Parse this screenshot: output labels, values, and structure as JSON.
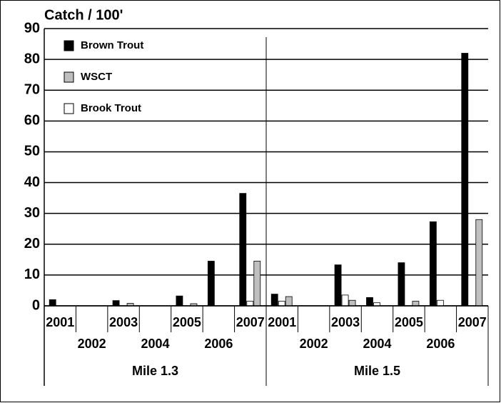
{
  "chart_data": {
    "type": "bar",
    "y_label": "Catch / 100'",
    "categories": [
      "2001",
      "2002",
      "2003",
      "2004",
      "2005",
      "2006",
      "2007",
      "2001",
      "2002",
      "2003",
      "2004",
      "2005",
      "2006",
      "2007"
    ],
    "groups": [
      "Mile 1.3",
      "Mile 1.5"
    ],
    "series": [
      {
        "name": "Brown Trout",
        "color": "#000000",
        "values": [
          2,
          0,
          1.7,
          0,
          3.2,
          14.5,
          36.5,
          3.8,
          0,
          13.3,
          2.7,
          14,
          27.3,
          82
        ]
      },
      {
        "name": "WSCT",
        "color": "#bfbfbf",
        "values": [
          0,
          0,
          0.8,
          0,
          0.7,
          0,
          14.5,
          3,
          0,
          1.8,
          0,
          1.5,
          0,
          28
        ]
      },
      {
        "name": "Brook Trout",
        "color": "#ffffff",
        "values": [
          0,
          0,
          0,
          0,
          0,
          0,
          1.5,
          1.5,
          0,
          3.5,
          1,
          0,
          1.8,
          0
        ]
      }
    ],
    "ylim": [
      0,
      90
    ],
    "yticks": [
      0,
      10,
      20,
      30,
      40,
      50,
      60,
      70,
      80,
      90
    ],
    "grid": true,
    "legend": "upper left"
  }
}
